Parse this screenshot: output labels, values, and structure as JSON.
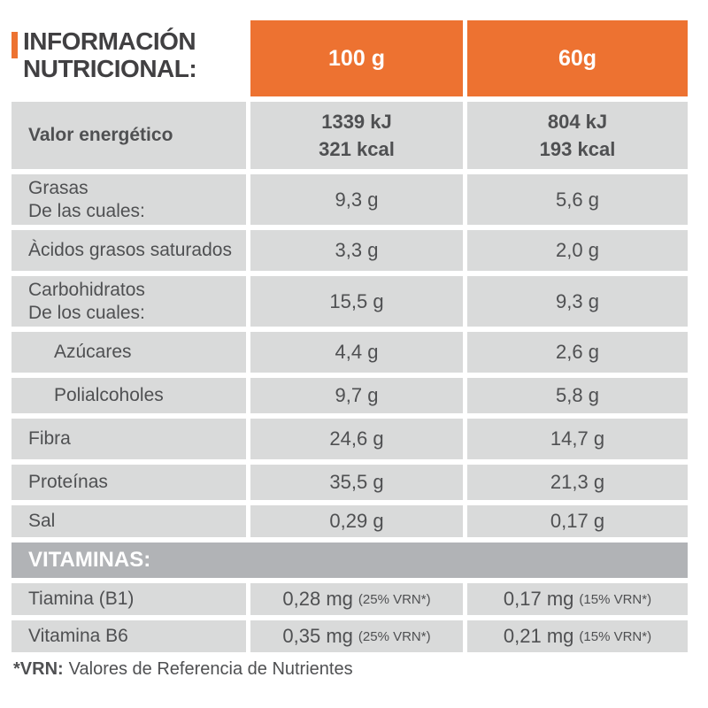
{
  "accent_color": "#ED7231",
  "row_bg": "#D9DADA",
  "section_bg": "#B1B3B6",
  "text_color": "#4F5052",
  "title": {
    "line1": "INFORMACIÓN",
    "line2": "NUTRICIONAL:"
  },
  "columns": {
    "per100": "100 g",
    "per60": "60g"
  },
  "rows": {
    "energy": {
      "label": "Valor energético",
      "v100_kj": "1339 kJ",
      "v100_kcal": "321 kcal",
      "v60_kj": "804 kJ",
      "v60_kcal": "193 kcal"
    },
    "fats": {
      "label1": "Grasas",
      "label2": "De las cuales:",
      "v100": "9,3 g",
      "v60": "5,6 g"
    },
    "saturated": {
      "label": "Àcidos grasos saturados",
      "v100": "3,3 g",
      "v60": "2,0 g"
    },
    "carbs": {
      "label1": "Carbohidratos",
      "label2": "De los cuales:",
      "v100": "15,5 g",
      "v60": "9,3 g"
    },
    "sugars": {
      "label": "Azúcares",
      "v100": "4,4 g",
      "v60": "2,6 g"
    },
    "polyols": {
      "label": "Polialcoholes",
      "v100": "9,7 g",
      "v60": "5,8 g"
    },
    "fiber": {
      "label": "Fibra",
      "v100": "24,6 g",
      "v60": "14,7 g"
    },
    "protein": {
      "label": "Proteínas",
      "v100": "35,5 g",
      "v60": "21,3 g"
    },
    "salt": {
      "label": "Sal",
      "v100": "0,29 g",
      "v60": "0,17 g"
    }
  },
  "vitamins": {
    "section_title": "VITAMINAS:",
    "thiamine": {
      "label": "Tiamina (B1)",
      "v100": "0,28 mg",
      "v100_note": "(25% VRN*)",
      "v60": "0,17 mg",
      "v60_note": "(15% VRN*)"
    },
    "b6": {
      "label": "Vitamina B6",
      "v100": "0,35 mg",
      "v100_note": "(25% VRN*)",
      "v60": "0,21 mg",
      "v60_note": "(15% VRN*)"
    }
  },
  "footnote": {
    "bold": "*VRN:",
    "text": "Valores de Referencia de Nutrientes"
  }
}
